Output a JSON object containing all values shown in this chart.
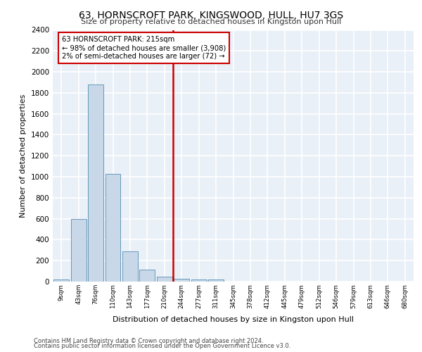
{
  "title1": "63, HORNSCROFT PARK, KINGSWOOD, HULL, HU7 3GS",
  "title2": "Size of property relative to detached houses in Kingston upon Hull",
  "xlabel": "Distribution of detached houses by size in Kingston upon Hull",
  "ylabel": "Number of detached properties",
  "footer1": "Contains HM Land Registry data © Crown copyright and database right 2024.",
  "footer2": "Contains public sector information licensed under the Open Government Licence v3.0.",
  "annotation_line1": "63 HORNSCROFT PARK: 215sqm",
  "annotation_line2": "← 98% of detached houses are smaller (3,908)",
  "annotation_line3": "2% of semi-detached houses are larger (72) →",
  "bar_labels": [
    "9sqm",
    "43sqm",
    "76sqm",
    "110sqm",
    "143sqm",
    "177sqm",
    "210sqm",
    "244sqm",
    "277sqm",
    "311sqm",
    "345sqm",
    "378sqm",
    "412sqm",
    "445sqm",
    "479sqm",
    "512sqm",
    "546sqm",
    "579sqm",
    "613sqm",
    "646sqm",
    "680sqm"
  ],
  "bar_values": [
    20,
    600,
    1880,
    1030,
    290,
    115,
    50,
    30,
    20,
    20,
    0,
    0,
    0,
    0,
    0,
    0,
    0,
    0,
    0,
    0,
    0
  ],
  "bar_color": "#c8d8e8",
  "bar_edge_color": "#6699bb",
  "vline_color": "#cc0000",
  "annotation_box_color": "#cc0000",
  "ylim": [
    0,
    2400
  ],
  "yticks": [
    0,
    200,
    400,
    600,
    800,
    1000,
    1200,
    1400,
    1600,
    1800,
    2000,
    2200,
    2400
  ],
  "bg_color": "#eaf0f8",
  "grid_color": "#ffffff"
}
